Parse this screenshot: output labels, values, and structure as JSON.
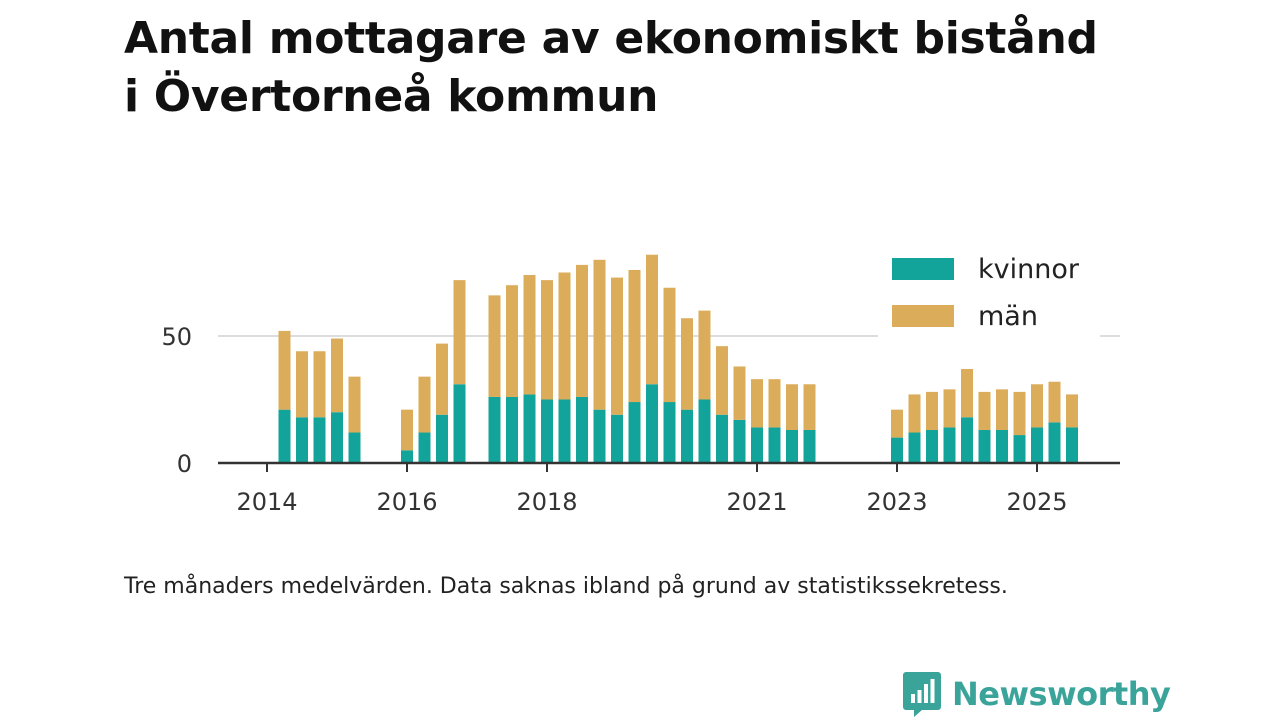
{
  "title_line1": "Antal mottagare av ekonomiskt bistånd",
  "title_line2": "i Övertorneå kommun",
  "note": "Tre månaders medelvärden. Data saknas ibland på grund av statistikssekretess.",
  "brand": {
    "name": "Newsworthy",
    "color": "#3aa39a",
    "logo_icon": "bar-chart-speech-bubble-icon"
  },
  "colors": {
    "kvinnor": "#12a39a",
    "man": "#dbac5a",
    "grid": "#dddddd",
    "axis": "#333333"
  },
  "chart_data": {
    "type": "bar",
    "stacked": true,
    "title": "Antal mottagare av ekonomiskt bistånd i Övertorneå kommun",
    "xlabel": "",
    "ylabel": "",
    "ylim": [
      0,
      85
    ],
    "yticks": [
      0,
      50
    ],
    "xticks": [
      "2014",
      "2016",
      "2018",
      "2021",
      "2023",
      "2025"
    ],
    "legend": {
      "position": "top-right",
      "entries": [
        "kvinnor",
        "män"
      ]
    },
    "categories": [
      "2014-Q2",
      "2014-Q3",
      "2014-Q4",
      "2015-Q1",
      "2015-Q2",
      "2016-Q1",
      "2016-Q2",
      "2016-Q3",
      "2016-Q4",
      "2017-Q2",
      "2017-Q3",
      "2017-Q4",
      "2018-Q1",
      "2018-Q2",
      "2018-Q3",
      "2018-Q4",
      "2019-Q1",
      "2019-Q2",
      "2019-Q3",
      "2019-Q4",
      "2020-Q1",
      "2020-Q2",
      "2020-Q3",
      "2020-Q4",
      "2021-Q1",
      "2021-Q2",
      "2021-Q3",
      "2021-Q4",
      "2023-Q1",
      "2023-Q2",
      "2023-Q3",
      "2023-Q4",
      "2024-Q1",
      "2024-Q2",
      "2024-Q3",
      "2024-Q4",
      "2025-Q1",
      "2025-Q2",
      "2025-Q3"
    ],
    "series": [
      {
        "name": "kvinnor",
        "values": [
          21,
          18,
          18,
          20,
          12,
          5,
          12,
          19,
          31,
          26,
          26,
          27,
          25,
          25,
          26,
          21,
          19,
          24,
          31,
          24,
          21,
          25,
          19,
          17,
          14,
          14,
          13,
          13,
          10,
          12,
          13,
          14,
          18,
          13,
          13,
          11,
          14,
          16,
          14
        ]
      },
      {
        "name": "män",
        "values": [
          31,
          26,
          26,
          29,
          22,
          16,
          22,
          28,
          41,
          40,
          44,
          47,
          47,
          50,
          52,
          59,
          54,
          52,
          51,
          45,
          36,
          35,
          27,
          21,
          19,
          19,
          18,
          18,
          11,
          15,
          15,
          15,
          19,
          15,
          16,
          17,
          17,
          16,
          13
        ]
      }
    ]
  }
}
